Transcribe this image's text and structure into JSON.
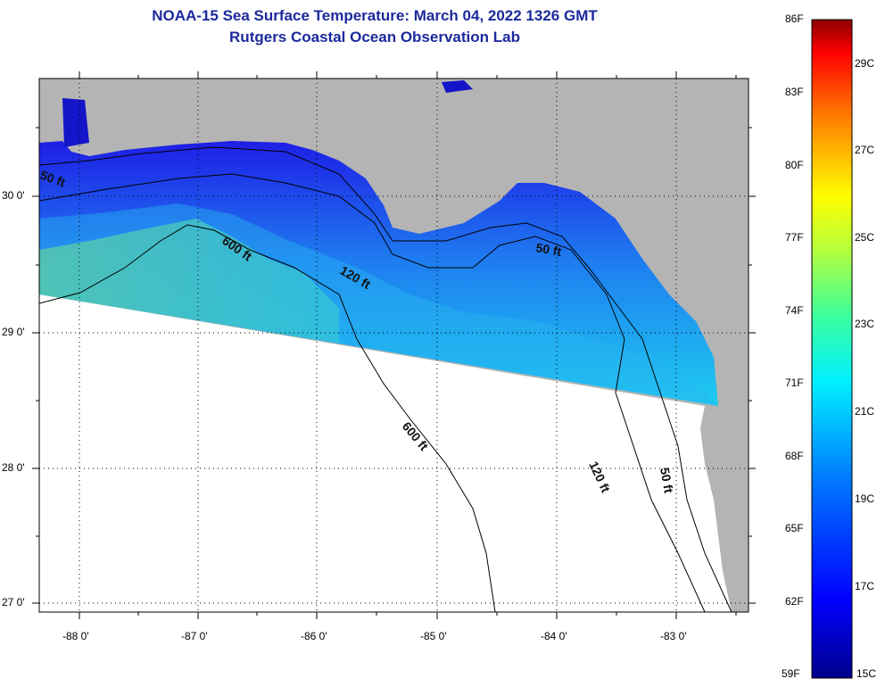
{
  "title": {
    "line1": "NOAA-15 Sea Surface Temperature:  March 04, 2022 1326 GMT",
    "line2": "Rutgers Coastal Ocean Observation Lab"
  },
  "colors": {
    "title": "#1c2a9c",
    "land": "#b4b4b4",
    "no_data": "#ffffff",
    "contour": "#000000"
  },
  "axes": {
    "longitude_labels": [
      "-88 0'",
      "-87 0'",
      "-86 0'",
      "-85 0'",
      "-84 0'",
      "-83 0'"
    ],
    "latitude_labels": [
      "30 0'",
      "29 0'",
      "28 0'",
      "27 0'"
    ]
  },
  "contours": {
    "labels": [
      "50 ft",
      "600 ft",
      "120 ft",
      "50 ft",
      "600 ft",
      "120 ft",
      "50 ft"
    ]
  },
  "colorbar": {
    "fahrenheit": [
      "86F",
      "83F",
      "80F",
      "77F",
      "74F",
      "71F",
      "68F",
      "65F",
      "62F",
      "59F"
    ],
    "celsius": [
      "29C",
      "27C",
      "25C",
      "23C",
      "21C",
      "19C",
      "17C",
      "15C"
    ],
    "range_f": [
      59,
      86
    ],
    "range_c": [
      15,
      30
    ]
  }
}
